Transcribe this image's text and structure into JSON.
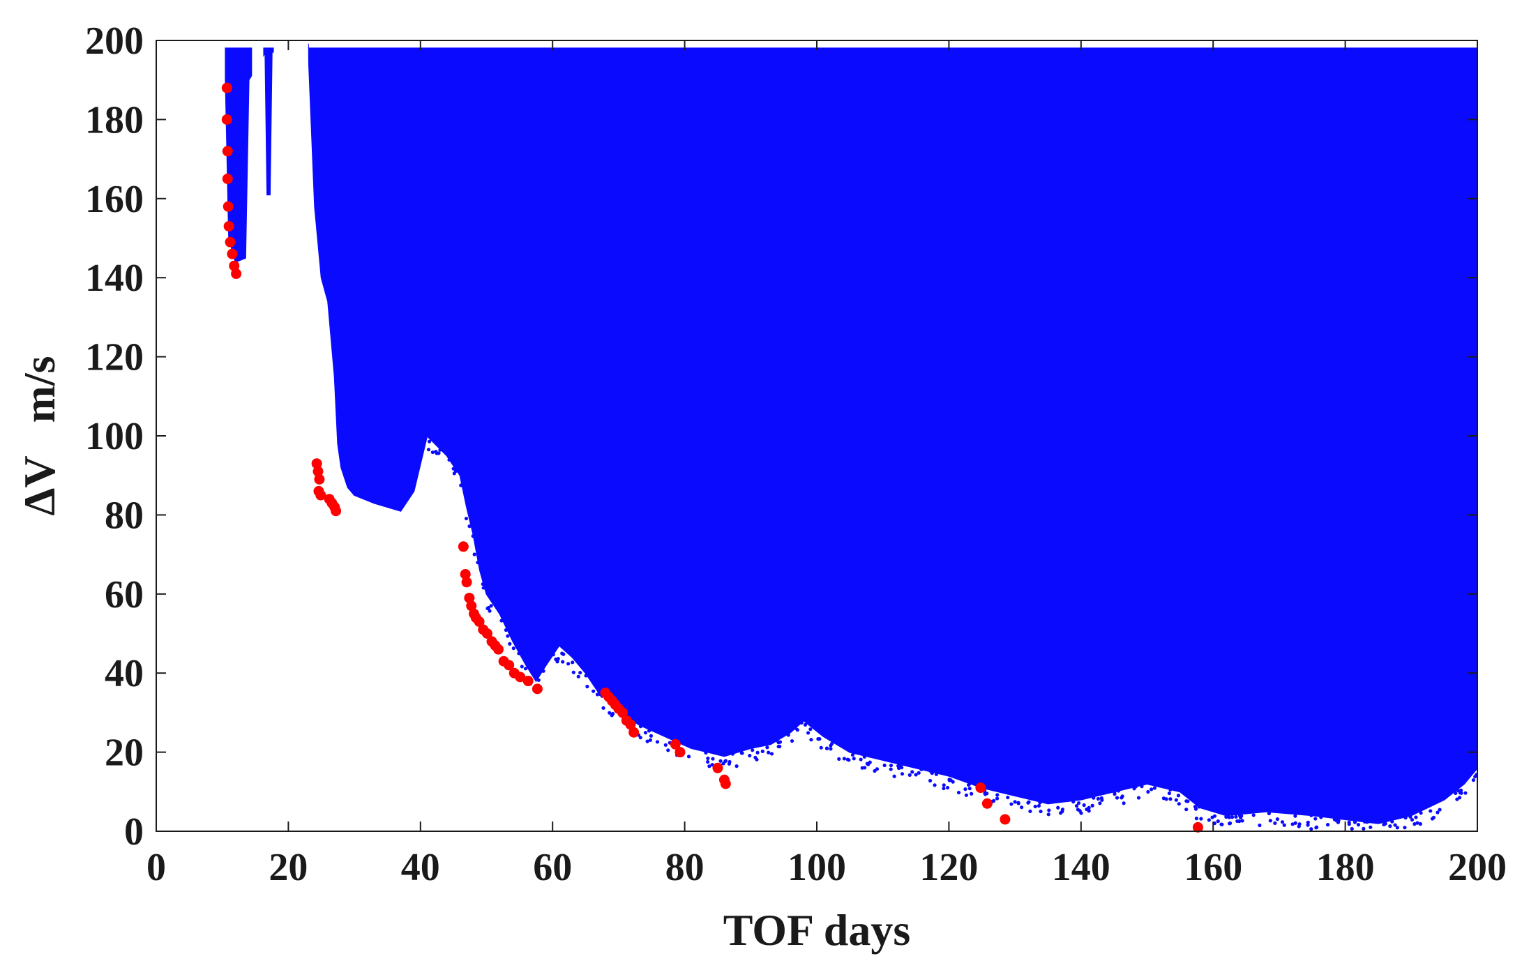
{
  "chart_data": {
    "type": "scatter",
    "xlabel": "TOF days",
    "ylabel": "ΔV   m/s",
    "xlim": [
      0,
      200
    ],
    "ylim": [
      0,
      200
    ],
    "xticks": [
      "0",
      "20",
      "40",
      "60",
      "80",
      "100",
      "120",
      "140",
      "160",
      "180",
      "200"
    ],
    "yticks": [
      "0",
      "20",
      "40",
      "60",
      "80",
      "100",
      "120",
      "140",
      "160",
      "180",
      "200"
    ],
    "grid": false,
    "colors": {
      "all_solutions": "#0a0aff",
      "pareto_front": "#ff0000",
      "axis": "#1a1a1a"
    },
    "series": [
      {
        "color": "#0a0aff",
        "kind": "dense-cloud",
        "upper_bound": 198,
        "lower_envelope": [
          [
            10.5,
            190
          ],
          [
            11,
            150
          ],
          [
            12,
            144
          ],
          [
            13.5,
            145
          ],
          [
            14,
            190
          ],
          [
            16.5,
            197
          ],
          [
            16.8,
            161
          ],
          [
            17.2,
            161
          ],
          [
            17.5,
            197
          ],
          [
            23,
            199
          ],
          [
            24,
            158
          ],
          [
            25,
            140
          ],
          [
            26,
            134
          ],
          [
            27,
            115
          ],
          [
            27.5,
            98
          ],
          [
            28,
            92
          ],
          [
            29,
            87
          ],
          [
            30,
            85
          ],
          [
            33,
            83
          ],
          [
            37,
            81
          ],
          [
            39,
            86
          ],
          [
            41,
            100
          ],
          [
            44,
            95
          ],
          [
            46,
            90
          ],
          [
            47,
            82
          ],
          [
            48,
            75
          ],
          [
            49,
            66
          ],
          [
            50,
            60
          ],
          [
            52,
            55
          ],
          [
            54,
            48
          ],
          [
            56,
            42
          ],
          [
            57.5,
            38
          ],
          [
            59,
            42
          ],
          [
            61,
            47
          ],
          [
            63,
            44
          ],
          [
            65,
            40
          ],
          [
            67,
            35
          ],
          [
            70,
            31
          ],
          [
            73,
            27
          ],
          [
            77,
            24
          ],
          [
            81,
            21
          ],
          [
            86,
            19
          ],
          [
            90,
            21
          ],
          [
            93,
            22
          ],
          [
            96,
            25
          ],
          [
            98,
            28
          ],
          [
            101,
            24
          ],
          [
            105,
            20
          ],
          [
            110,
            18
          ],
          [
            115,
            16
          ],
          [
            120,
            14
          ],
          [
            125,
            11
          ],
          [
            130,
            9
          ],
          [
            135,
            7
          ],
          [
            140,
            8
          ],
          [
            145,
            10
          ],
          [
            150,
            12
          ],
          [
            155,
            10
          ],
          [
            158,
            6
          ],
          [
            162,
            4
          ],
          [
            168,
            5
          ],
          [
            175,
            4
          ],
          [
            180,
            3
          ],
          [
            185,
            2
          ],
          [
            190,
            4
          ],
          [
            195,
            8
          ],
          [
            198,
            12
          ],
          [
            200,
            16
          ]
        ],
        "left_gaps": [
          [
            14.5,
            16.2
          ],
          [
            17.8,
            23
          ]
        ]
      },
      {
        "color": "#ff0000",
        "kind": "points",
        "x": [
          10.7,
          10.7,
          10.8,
          10.8,
          10.9,
          11.0,
          11.2,
          11.5,
          11.8,
          12.1,
          24.3,
          24.5,
          24.7,
          24.6,
          24.9,
          26.2,
          26.6,
          27.0,
          27.2,
          46.5,
          46.8,
          47.0,
          47.4,
          47.7,
          48.1,
          48.4,
          48.9,
          49.5,
          50.1,
          50.8,
          51.3,
          51.8,
          52.6,
          53.4,
          54.2,
          55.1,
          56.3,
          57.7,
          68.0,
          68.5,
          69.0,
          69.5,
          70.0,
          70.6,
          71.2,
          71.8,
          72.3,
          78.6,
          79.3,
          85.0,
          86.0,
          86.2,
          124.8,
          125.8,
          128.5,
          157.7
        ],
        "y": [
          188,
          180,
          172,
          165,
          158,
          153,
          149,
          146,
          143,
          141,
          93,
          91,
          89,
          86,
          85,
          84,
          83,
          82,
          81,
          72,
          65,
          63,
          59,
          57,
          55,
          54,
          53,
          51,
          50,
          48,
          47,
          46,
          43,
          42,
          40,
          39,
          38,
          36,
          35,
          34,
          33,
          32,
          31,
          30,
          28,
          27,
          25,
          22,
          20,
          16,
          13,
          12,
          11,
          7,
          3,
          1
        ]
      }
    ]
  }
}
